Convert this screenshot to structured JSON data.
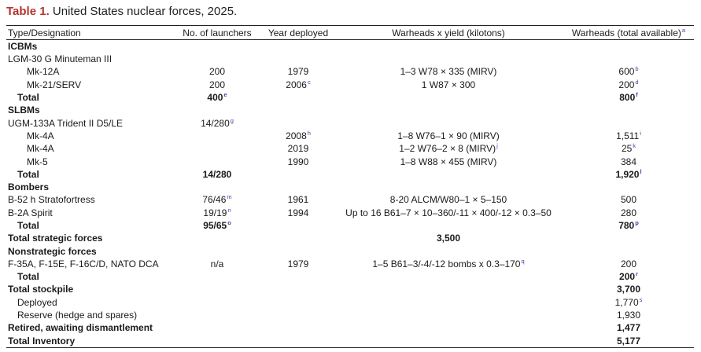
{
  "caption": {
    "label": "Table 1.",
    "title": "United States nuclear forces, 2025."
  },
  "headers": [
    {
      "text": "Type/Designation",
      "sup": ""
    },
    {
      "text": "No. of launchers",
      "sup": ""
    },
    {
      "text": "Year deployed",
      "sup": ""
    },
    {
      "text": "Warheads x yield (kilotons)",
      "sup": ""
    },
    {
      "text": "Warheads (total available)",
      "sup": "a"
    }
  ],
  "rows": [
    {
      "style": "section",
      "cells": [
        {
          "text": "ICBMs"
        },
        {},
        {},
        {},
        {}
      ]
    },
    {
      "style": "sub",
      "cells": [
        {
          "text": "LGM-30 G Minuteman III"
        },
        {},
        {},
        {},
        {}
      ]
    },
    {
      "style": "item",
      "cells": [
        {
          "text": "Mk-12A"
        },
        {
          "text": "200"
        },
        {
          "text": "1979"
        },
        {
          "text": "1–3 W78 × 335 (MIRV)"
        },
        {
          "text": "600",
          "sup": "b"
        }
      ]
    },
    {
      "style": "item",
      "cells": [
        {
          "text": "Mk-21/SERV"
        },
        {
          "text": "200"
        },
        {
          "text": "2006",
          "sup": "c"
        },
        {
          "text": "1 W87 × 300"
        },
        {
          "text": "200",
          "sup": "d"
        }
      ]
    },
    {
      "style": "total",
      "cells": [
        {
          "text": "Total"
        },
        {
          "text": "400",
          "sup": "e"
        },
        {},
        {},
        {
          "text": "800",
          "sup": "f"
        }
      ]
    },
    {
      "style": "section",
      "cells": [
        {
          "text": "SLBMs"
        },
        {},
        {},
        {},
        {}
      ]
    },
    {
      "style": "sub",
      "cells": [
        {
          "text": "UGM-133A Trident II D5/LE"
        },
        {
          "text": "14/280",
          "sup": "g"
        },
        {},
        {},
        {}
      ]
    },
    {
      "style": "item",
      "cells": [
        {
          "text": "Mk-4A"
        },
        {},
        {
          "text": "2008",
          "sup": "h"
        },
        {
          "text": "1–8 W76–1 × 90 (MIRV)"
        },
        {
          "text": "1,511",
          "sup": "i"
        }
      ]
    },
    {
      "style": "item",
      "cells": [
        {
          "text": "Mk-4A"
        },
        {},
        {
          "text": "2019"
        },
        {
          "text": "1–2 W76–2 × 8 (MIRV)",
          "sup": "j"
        },
        {
          "text": "25",
          "sup": "k"
        }
      ]
    },
    {
      "style": "item",
      "cells": [
        {
          "text": "Mk-5"
        },
        {},
        {
          "text": "1990"
        },
        {
          "text": "1–8 W88 × 455 (MIRV)"
        },
        {
          "text": "384"
        }
      ]
    },
    {
      "style": "total",
      "cells": [
        {
          "text": "Total"
        },
        {
          "text": "14/280"
        },
        {},
        {},
        {
          "text": "1,920",
          "sup": "l"
        }
      ]
    },
    {
      "style": "section",
      "cells": [
        {
          "text": "Bombers"
        },
        {},
        {},
        {},
        {}
      ]
    },
    {
      "style": "sub",
      "cells": [
        {
          "text": "B-52 h Stratofortress"
        },
        {
          "text": "76/46",
          "sup": "m"
        },
        {
          "text": "1961"
        },
        {
          "text": "8-20 ALCM/W80–1 × 5–150"
        },
        {
          "text": "500"
        }
      ]
    },
    {
      "style": "sub",
      "cells": [
        {
          "text": "B-2A Spirit"
        },
        {
          "text": "19/19",
          "sup": "n"
        },
        {
          "text": "1994"
        },
        {
          "text": "Up to 16 B61–7 × 10–360/-11 × 400/-12 × 0.3–50"
        },
        {
          "text": "280"
        }
      ]
    },
    {
      "style": "total",
      "cells": [
        {
          "text": "Total"
        },
        {
          "text": "95/65",
          "sup": "o"
        },
        {},
        {},
        {
          "text": "780",
          "sup": "p"
        }
      ]
    },
    {
      "style": "section",
      "cells": [
        {
          "text": "Total strategic forces"
        },
        {},
        {},
        {
          "text": "3,500",
          "bold": true
        },
        {}
      ]
    },
    {
      "style": "section",
      "cells": [
        {
          "text": "Nonstrategic forces"
        },
        {},
        {},
        {},
        {}
      ]
    },
    {
      "style": "sub",
      "cells": [
        {
          "text": "F-35A, F-15E, F-16C/D, NATO DCA"
        },
        {
          "text": "n/a"
        },
        {
          "text": "1979"
        },
        {
          "text": "1–5 B61–3/-4/-12 bombs x 0.3–170",
          "sup": "q"
        },
        {
          "text": "200"
        }
      ]
    },
    {
      "style": "total",
      "cells": [
        {
          "text": "Total"
        },
        {},
        {},
        {},
        {
          "text": "200",
          "sup": "r"
        }
      ]
    },
    {
      "style": "section",
      "cells": [
        {
          "text": "Total stockpile"
        },
        {},
        {},
        {},
        {
          "text": "3,700"
        }
      ]
    },
    {
      "style": "item-plain",
      "cells": [
        {
          "text": "Deployed"
        },
        {},
        {},
        {},
        {
          "text": "1,770",
          "sup": "s"
        }
      ]
    },
    {
      "style": "item-plain",
      "cells": [
        {
          "text": "Reserve (hedge and spares)"
        },
        {},
        {},
        {},
        {
          "text": "1,930"
        }
      ]
    },
    {
      "style": "section",
      "cells": [
        {
          "text": "Retired, awaiting dismantlement"
        },
        {},
        {},
        {},
        {
          "text": "1,477"
        }
      ]
    },
    {
      "style": "section",
      "cells": [
        {
          "text": "Total Inventory"
        },
        {},
        {},
        {},
        {
          "text": "5,177"
        }
      ]
    }
  ]
}
